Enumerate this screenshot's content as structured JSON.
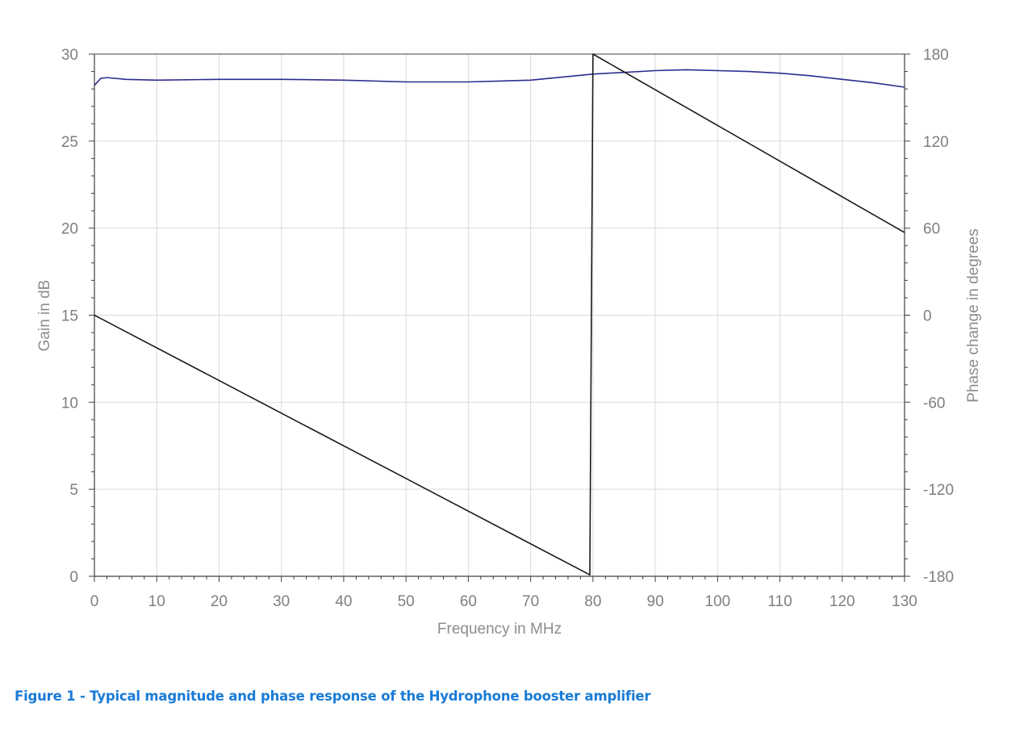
{
  "caption": "Figure 1 - Typical magnitude and phase response of the Hydrophone booster amplifier",
  "chart_data": {
    "type": "line",
    "title": "",
    "xlabel": "Frequency in MHz",
    "ylabel": "Gain in dB",
    "y2label": "Phase change in degrees",
    "xlim": [
      0,
      130
    ],
    "ylim": [
      0,
      30
    ],
    "y2lim": [
      -180,
      180
    ],
    "x_ticks": [
      "0",
      "10",
      "20",
      "30",
      "40",
      "50",
      "60",
      "70",
      "80",
      "90",
      "100",
      "110",
      "120",
      "130"
    ],
    "y_ticks": [
      "0",
      "5",
      "10",
      "15",
      "20",
      "25",
      "30"
    ],
    "y2_ticks": [
      "-180",
      "-120",
      "-60",
      "0",
      "60",
      "120",
      "180"
    ],
    "grid": true,
    "colors": {
      "gain": "#2b2d8e",
      "phase": "#1a1a1a",
      "grid": "#d9d9d9",
      "axis": "#404040",
      "caption": "#1a7bd6"
    },
    "series": [
      {
        "axis": "left",
        "color": "#2b2d8e",
        "x": [
          0,
          1,
          2,
          5,
          10,
          20,
          30,
          40,
          50,
          55,
          60,
          70,
          80,
          85,
          90,
          95,
          100,
          105,
          110,
          115,
          120,
          125,
          130
        ],
        "y": [
          28.2,
          28.6,
          28.65,
          28.55,
          28.5,
          28.55,
          28.55,
          28.5,
          28.4,
          28.4,
          28.4,
          28.5,
          28.85,
          28.95,
          29.05,
          29.1,
          29.05,
          29.0,
          28.9,
          28.75,
          28.55,
          28.35,
          28.1
        ]
      },
      {
        "axis": "right",
        "color": "#1a1a1a",
        "x": [
          0,
          79.5,
          79.5,
          80,
          130
        ],
        "y": [
          0,
          -179,
          -179,
          180,
          57
        ]
      }
    ]
  }
}
